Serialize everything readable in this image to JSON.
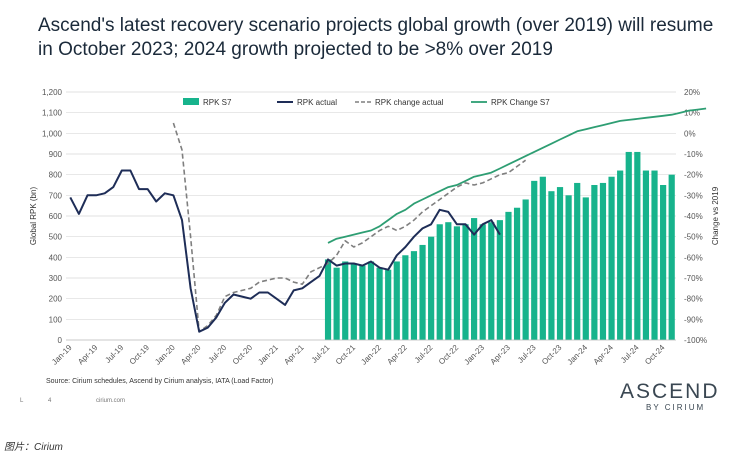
{
  "title": "Ascend's latest recovery scenario projects global growth (over 2019) will resume in October 2023; 2024 growth projected to be >8% over 2019",
  "source": "Source: Cirium schedules, Ascend by Cirium analysis, IATA (Load Factor)",
  "footer": {
    "page_marker": "L",
    "page_number": "4",
    "site": "cirium.com"
  },
  "logo": {
    "main": "ASCEND",
    "sub": "BY CIRIUM"
  },
  "caption": "图片：Cirium",
  "colors": {
    "bar": "#17b38c",
    "actual": "#1e2d57",
    "change_actual": "#7f7f7f",
    "change_s7": "#2e9e73"
  },
  "chart_data": {
    "type": "bar",
    "ylabel": "Global RPK (bn)",
    "y2label": "Change vs 2019",
    "ylim": [
      0,
      1200
    ],
    "y2lim": [
      -100,
      20
    ],
    "yticks": [
      "0",
      "100",
      "200",
      "300",
      "400",
      "500",
      "600",
      "700",
      "800",
      "900",
      "1,000",
      "1,100",
      "1,200"
    ],
    "y2ticks": [
      "-100%",
      "-90%",
      "-80%",
      "-70%",
      "-60%",
      "-50%",
      "-40%",
      "-30%",
      "-20%",
      "-10%",
      "0%",
      "10%",
      "20%"
    ],
    "x_tick_labels": [
      "Jan-19",
      "Apr-19",
      "Jul-19",
      "Oct-19",
      "Jan-20",
      "Apr-20",
      "Jul-20",
      "Oct-20",
      "Jan-21",
      "Apr-21",
      "Jul-21",
      "Oct-21",
      "Jan-22",
      "Apr-22",
      "Jul-22",
      "Oct-22",
      "Jan-23",
      "Apr-23",
      "Jul-23",
      "Oct-23",
      "Jan-24",
      "Apr-24",
      "Jul-24",
      "Oct-24"
    ],
    "legend": [
      "RPK S7",
      "RPK actual",
      "RPK change actual",
      "RPK Change S7"
    ],
    "legend_position": "top",
    "grid": true,
    "series": [
      {
        "name": "RPK S7",
        "kind": "bar",
        "start_month": "Jul-21",
        "values": [
          390,
          350,
          380,
          370,
          360,
          380,
          350,
          340,
          380,
          410,
          430,
          460,
          500,
          560,
          570,
          550,
          560,
          590,
          560,
          570,
          580,
          620,
          640,
          680,
          770,
          790,
          720,
          740,
          700,
          760,
          690,
          750,
          760,
          790,
          820,
          910,
          910,
          820,
          820,
          750,
          800
        ]
      },
      {
        "name": "RPK actual",
        "kind": "line",
        "start_month": "Jan-19",
        "values": [
          690,
          610,
          700,
          700,
          710,
          740,
          820,
          820,
          730,
          730,
          670,
          710,
          700,
          580,
          250,
          40,
          60,
          110,
          180,
          220,
          210,
          200,
          230,
          230,
          200,
          170,
          240,
          250,
          280,
          310,
          390,
          360,
          370,
          370,
          360,
          380,
          350,
          340,
          410,
          450,
          500,
          540,
          560,
          630,
          620,
          560,
          560,
          510,
          560,
          580,
          510
        ]
      },
      {
        "name": "RPK change actual",
        "kind": "line",
        "axis": "right",
        "start_month": "Jan-20",
        "values": [
          5,
          -8,
          -50,
          -96,
          -93,
          -88,
          -79,
          -77,
          -76,
          -75,
          -72,
          -71,
          -70,
          -70,
          -72,
          -73,
          -67,
          -65,
          -63,
          -59,
          -52,
          -55,
          -53,
          -50,
          -47,
          -45,
          -47,
          -45,
          -42,
          -38,
          -35,
          -32,
          -29,
          -26,
          -24,
          -25,
          -24,
          -22,
          -20,
          -19,
          -16,
          -13
        ]
      },
      {
        "name": "RPK Change S7",
        "kind": "line",
        "axis": "right",
        "start_month": "Jul-21",
        "values": [
          -53,
          -51,
          -50,
          -49,
          -48,
          -47,
          -45,
          -42,
          -39,
          -37,
          -34,
          -32,
          -30,
          -28,
          -26,
          -25,
          -23,
          -21,
          -20,
          -19,
          -17,
          -15,
          -13,
          -11,
          -9,
          -7,
          -5,
          -3,
          -1,
          1,
          2,
          3,
          4,
          5,
          6,
          6.5,
          7,
          7.5,
          8,
          8.5,
          9,
          10,
          11,
          11.5,
          12
        ]
      }
    ]
  }
}
